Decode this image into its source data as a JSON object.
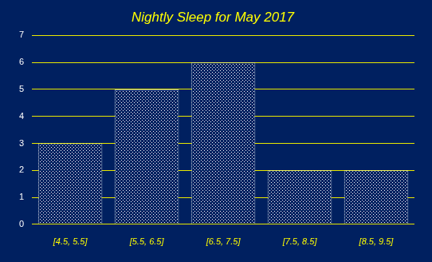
{
  "chart_data": {
    "type": "bar",
    "title": "Nightly Sleep for May 2017",
    "categories": [
      "[4.5, 5.5]",
      "[5.5, 6.5]",
      "[6.5, 7.5]",
      "[7.5, 8.5]",
      "[8.5, 9.5]"
    ],
    "values": [
      3,
      5,
      6,
      2,
      2
    ],
    "color": "#002060",
    "ylim": [
      0,
      7
    ],
    "yticks": [
      0,
      1,
      2,
      3,
      4,
      5,
      6,
      7
    ],
    "grid": true
  }
}
